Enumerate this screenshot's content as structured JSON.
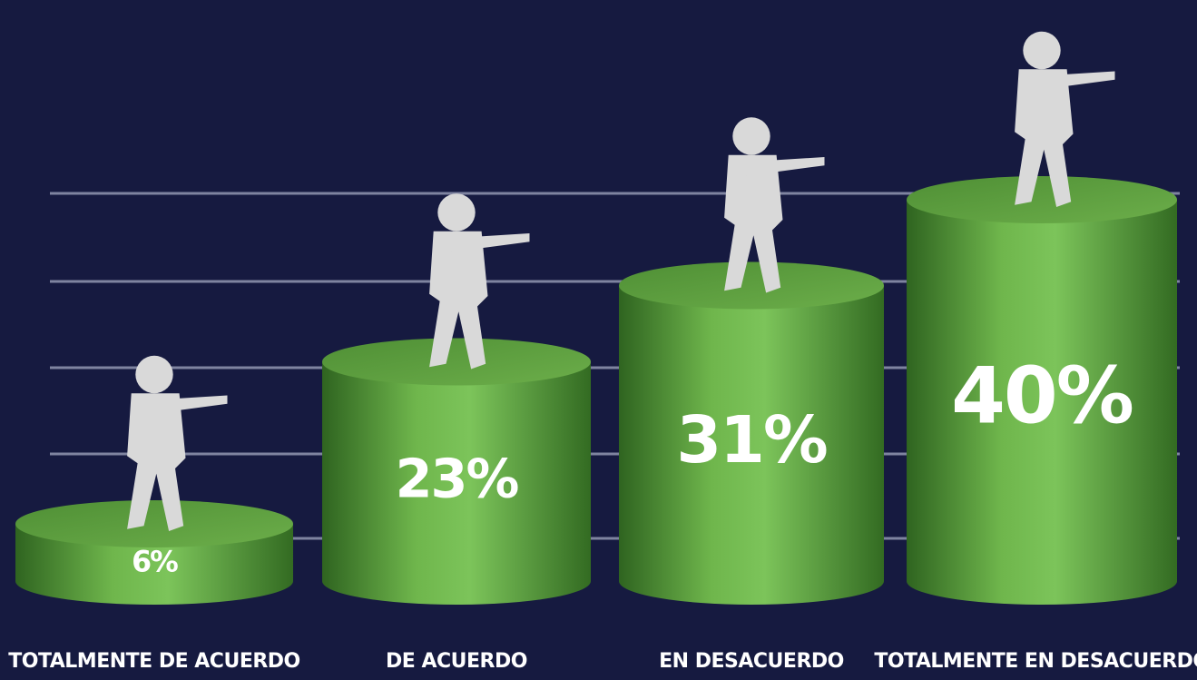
{
  "chart_data": {
    "type": "cylinder",
    "categories": [
      "TOTALMENTE DE ACUERDO",
      "DE ACUERDO",
      "EN DESACUERDO",
      "TOTALMENTE EN DESACUERDO"
    ],
    "values": [
      6,
      23,
      31,
      40
    ],
    "value_labels": [
      "6%",
      "23%",
      "31%",
      "40%"
    ],
    "color": "#5fa63d",
    "grid": true
  }
}
